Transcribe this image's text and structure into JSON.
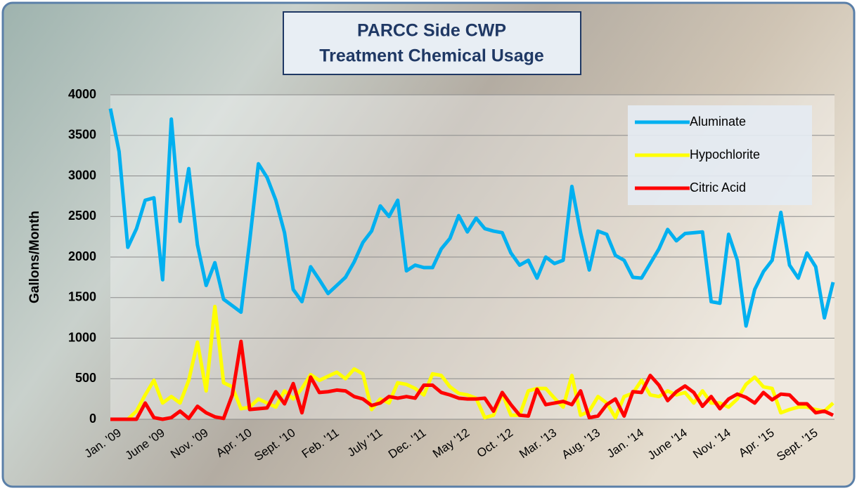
{
  "chart_data": {
    "type": "line",
    "title": [
      "PARCC Side CWP",
      "Treatment Chemical Usage"
    ],
    "y_label": "Gallons/Month",
    "categories": [
      "Jan. '09",
      null,
      null,
      null,
      null,
      "June '09",
      null,
      null,
      null,
      null,
      "Nov. '09",
      null,
      null,
      null,
      null,
      "Apr. '10",
      null,
      null,
      null,
      null,
      "Sept. '10",
      null,
      null,
      null,
      null,
      "Feb. '11",
      null,
      null,
      null,
      null,
      "July '11",
      null,
      null,
      null,
      null,
      "Dec. '11",
      null,
      null,
      null,
      null,
      "May '12",
      null,
      null,
      null,
      null,
      "Oct. '12",
      null,
      null,
      null,
      null,
      "Mar. '13",
      null,
      null,
      null,
      null,
      "Aug. '13",
      null,
      null,
      null,
      null,
      "Jan. '14",
      null,
      null,
      null,
      null,
      "June '14",
      null,
      null,
      null,
      null,
      "Nov. '14",
      null,
      null,
      null,
      null,
      "Apr. '15",
      null,
      null,
      null,
      null,
      "Sept. '15",
      null,
      null,
      null
    ],
    "series": [
      {
        "name": "Aluminate",
        "color": "#00b0f0",
        "values": [
          3830,
          3300,
          2120,
          2350,
          2700,
          2730,
          1720,
          3700,
          2440,
          3090,
          2150,
          1650,
          1930,
          1480,
          1400,
          1320,
          2200,
          3150,
          2980,
          2700,
          2300,
          1600,
          1450,
          1880,
          1720,
          1550,
          1650,
          1750,
          1940,
          2180,
          2320,
          2630,
          2500,
          2700,
          1830,
          1900,
          1870,
          1870,
          2100,
          2230,
          2510,
          2310,
          2480,
          2350,
          2320,
          2300,
          2050,
          1900,
          1960,
          1740,
          2000,
          1920,
          1960,
          2870,
          2300,
          1840,
          2320,
          2280,
          2020,
          1960,
          1750,
          1740,
          1920,
          2100,
          2340,
          2200,
          2290,
          2300,
          2310,
          1450,
          1430,
          2280,
          1960,
          1150,
          1600,
          1820,
          1960,
          2550,
          1900,
          1740,
          2050,
          1880,
          1250,
          1690
        ]
      },
      {
        "name": "Hypochlorite",
        "color": "#ffff00",
        "values": [
          0,
          0,
          0,
          100,
          300,
          480,
          200,
          280,
          200,
          480,
          950,
          350,
          1390,
          450,
          400,
          130,
          150,
          250,
          200,
          150,
          350,
          250,
          380,
          550,
          480,
          530,
          580,
          500,
          620,
          560,
          120,
          250,
          200,
          450,
          430,
          380,
          300,
          560,
          540,
          400,
          320,
          300,
          260,
          20,
          50,
          320,
          50,
          50,
          350,
          380,
          380,
          260,
          150,
          540,
          50,
          100,
          280,
          200,
          20,
          280,
          320,
          480,
          300,
          280,
          350,
          300,
          330,
          200,
          350,
          200,
          200,
          150,
          250,
          430,
          520,
          400,
          380,
          80,
          120,
          150,
          150,
          120,
          100,
          200
        ]
      },
      {
        "name": "Citric Acid",
        "color": "#ff0000",
        "values": [
          0,
          0,
          0,
          0,
          200,
          20,
          0,
          20,
          100,
          10,
          160,
          80,
          30,
          10,
          300,
          960,
          120,
          130,
          140,
          340,
          190,
          440,
          80,
          520,
          330,
          340,
          360,
          350,
          280,
          250,
          170,
          200,
          280,
          260,
          280,
          260,
          420,
          420,
          330,
          300,
          260,
          250,
          250,
          260,
          100,
          330,
          180,
          50,
          40,
          370,
          180,
          200,
          220,
          180,
          350,
          20,
          40,
          180,
          250,
          40,
          340,
          330,
          540,
          420,
          230,
          340,
          410,
          330,
          160,
          280,
          130,
          250,
          310,
          270,
          200,
          330,
          240,
          310,
          300,
          190,
          190,
          80,
          100,
          50
        ]
      }
    ],
    "ylim": [
      0,
      4000
    ],
    "yticks": [
      0,
      500,
      1000,
      1500,
      2000,
      2500,
      3000,
      3500,
      4000
    ],
    "grid": true,
    "legend": "top-right"
  }
}
